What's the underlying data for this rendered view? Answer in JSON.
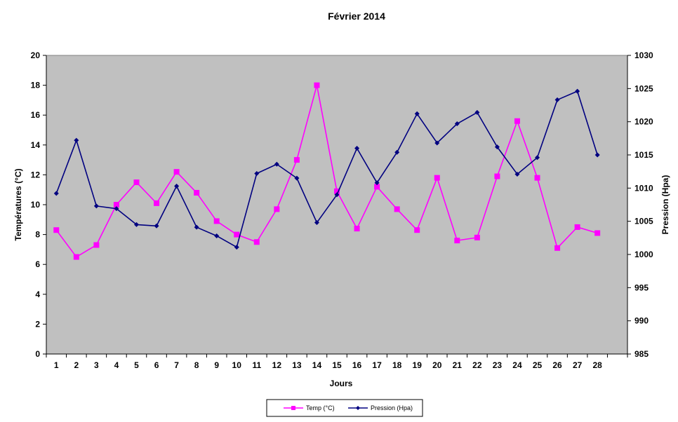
{
  "chart_data": {
    "type": "line",
    "title": "Février 2014",
    "xlabel": "Jours",
    "ylabel": "Températures (°C)",
    "y2label": "Pression (Hpa)",
    "categories": [
      "1",
      "2",
      "3",
      "4",
      "5",
      "6",
      "7",
      "8",
      "9",
      "10",
      "11",
      "12",
      "13",
      "14",
      "15",
      "16",
      "17",
      "18",
      "19",
      "20",
      "21",
      "22",
      "23",
      "24",
      "25",
      "26",
      "27",
      "28"
    ],
    "ylim": [
      0,
      20
    ],
    "y2lim": [
      985,
      1030
    ],
    "yticks": [
      "0",
      "2",
      "4",
      "6",
      "8",
      "10",
      "12",
      "14",
      "16",
      "18",
      "20"
    ],
    "y2ticks": [
      "985",
      "990",
      "995",
      "1000",
      "1005",
      "1010",
      "1015",
      "1020",
      "1025",
      "1030"
    ],
    "grid": false,
    "plot_background": "#C0C0C0",
    "legend_position": "bottom",
    "series": [
      {
        "name": "Temp (°C)",
        "axis": "left",
        "color": "#FF00FF",
        "marker": "square",
        "values": [
          8.3,
          6.5,
          7.3,
          10.0,
          11.5,
          10.1,
          12.2,
          10.8,
          8.9,
          8.0,
          7.5,
          9.7,
          13.0,
          18.0,
          10.9,
          8.4,
          11.2,
          9.7,
          8.3,
          11.8,
          7.6,
          7.8,
          11.9,
          15.6,
          11.8,
          7.1,
          8.5,
          8.1
        ]
      },
      {
        "name": "Pression (Hpa)",
        "axis": "right",
        "color": "#000080",
        "marker": "diamond",
        "values": [
          1009.2,
          1017.2,
          1007.3,
          1006.9,
          1004.5,
          1004.3,
          1010.3,
          1004.1,
          1002.8,
          1001.1,
          1012.2,
          1013.6,
          1011.5,
          1004.8,
          1009.0,
          1016.0,
          1010.8,
          1015.4,
          1021.2,
          1016.8,
          1019.7,
          1021.4,
          1016.2,
          1012.1,
          1014.6,
          1023.3,
          1024.6,
          1015.0
        ]
      }
    ]
  }
}
